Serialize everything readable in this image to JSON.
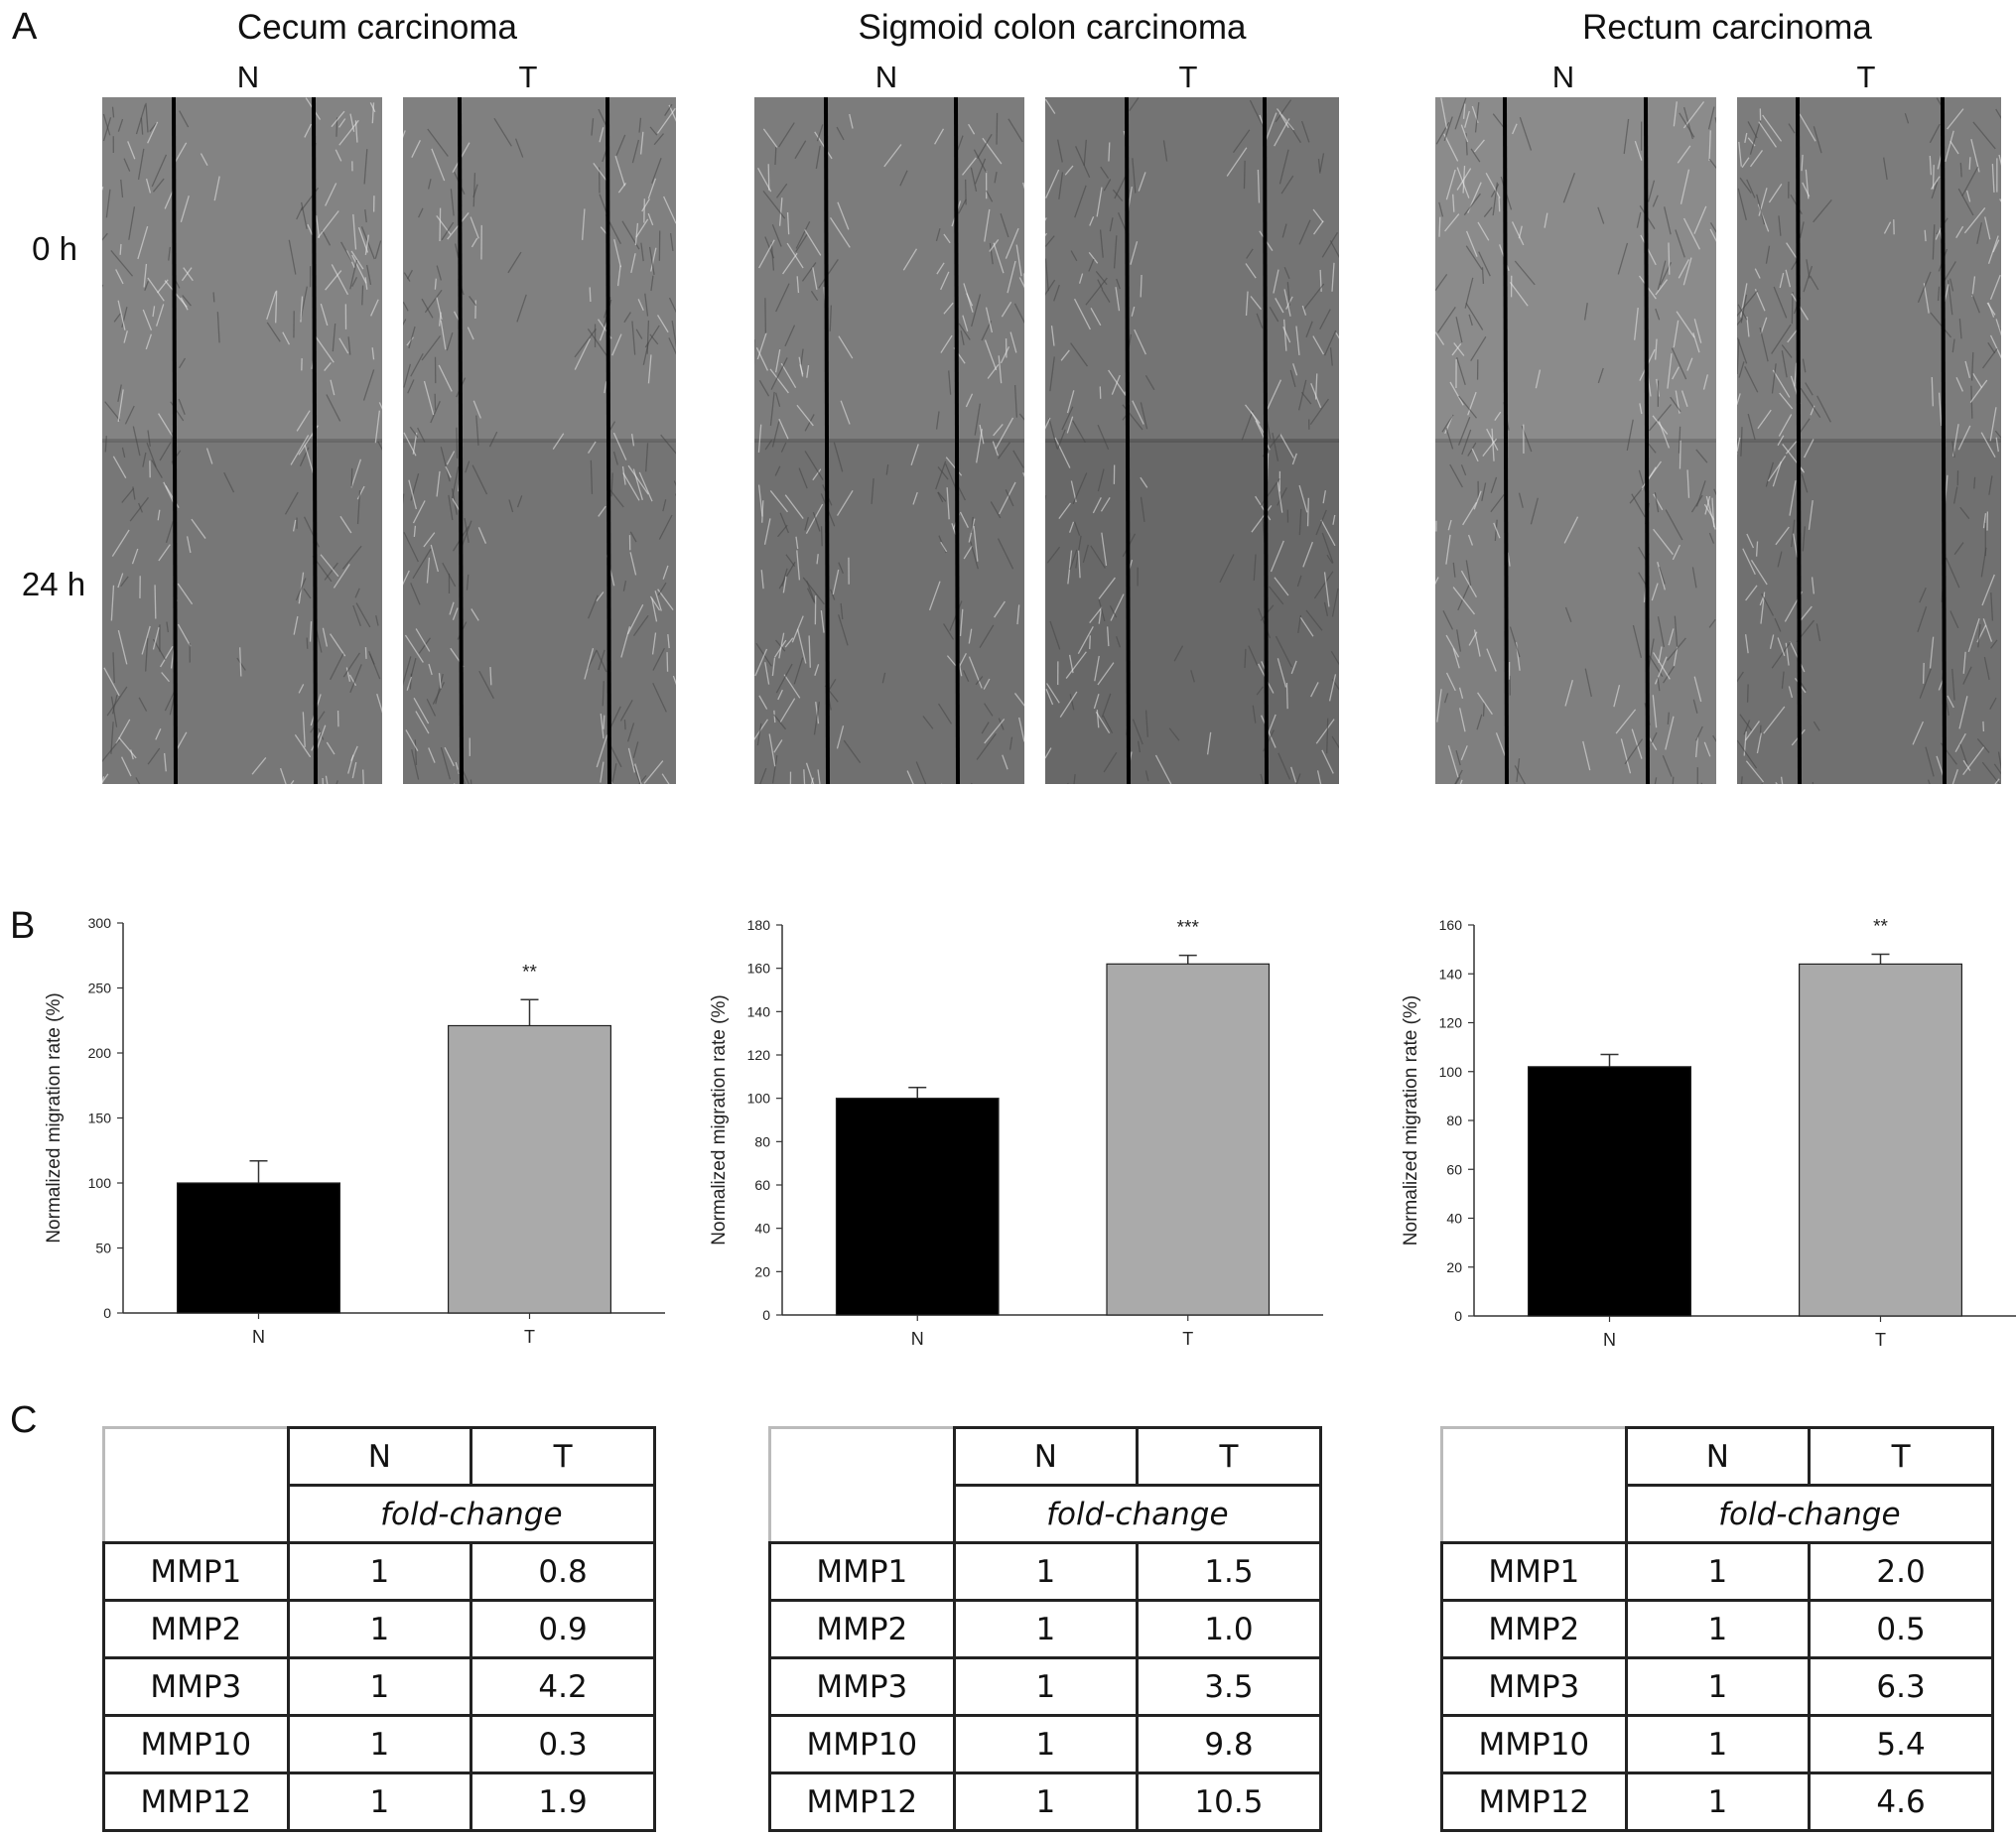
{
  "panels": {
    "a": "A",
    "b": "B",
    "c": "C"
  },
  "panel_a": {
    "titles": [
      "Cecum carcinoma",
      "Sigmoid colon carcinoma",
      "Rectum carcinoma"
    ],
    "n_label": "N",
    "t_label": "T",
    "time_0": "0 h",
    "time_24": "24 h"
  },
  "chart_data": [
    {
      "type": "bar",
      "categories": [
        "N",
        "T"
      ],
      "values": [
        100,
        221
      ],
      "errors": [
        17,
        20
      ],
      "annotation": "**",
      "ylabel": "Normalized migration rate (%)",
      "ylim": [
        0,
        300
      ],
      "yticks": [
        "0",
        "50",
        "100",
        "150",
        "200",
        "250",
        "300"
      ],
      "colors": [
        "#000000",
        "#aaaaaa"
      ]
    },
    {
      "type": "bar",
      "categories": [
        "N",
        "T"
      ],
      "values": [
        100,
        162
      ],
      "errors": [
        5,
        4
      ],
      "annotation": "***",
      "ylabel": "Normalized migration rate (%)",
      "ylim": [
        0,
        180
      ],
      "yticks": [
        "0",
        "20",
        "40",
        "60",
        "80",
        "100",
        "120",
        "140",
        "160",
        "180"
      ],
      "colors": [
        "#000000",
        "#aaaaaa"
      ]
    },
    {
      "type": "bar",
      "categories": [
        "N",
        "T"
      ],
      "values": [
        102,
        144
      ],
      "errors": [
        5,
        4
      ],
      "annotation": "**",
      "ylabel": "Normalized migration rate (%)",
      "ylim": [
        0,
        160
      ],
      "yticks": [
        "0",
        "20",
        "40",
        "60",
        "80",
        "100",
        "120",
        "140",
        "160"
      ],
      "colors": [
        "#000000",
        "#aaaaaa"
      ]
    }
  ],
  "tables": [
    {
      "header": [
        "N",
        "T"
      ],
      "subheader": "fold-change",
      "rows": [
        {
          "gene": "MMP1",
          "n": "1",
          "t": "0.8"
        },
        {
          "gene": "MMP2",
          "n": "1",
          "t": "0.9"
        },
        {
          "gene": "MMP3",
          "n": "1",
          "t": "4.2"
        },
        {
          "gene": "MMP10",
          "n": "1",
          "t": "0.3"
        },
        {
          "gene": "MMP12",
          "n": "1",
          "t": "1.9"
        }
      ]
    },
    {
      "header": [
        "N",
        "T"
      ],
      "subheader": "fold-change",
      "rows": [
        {
          "gene": "MMP1",
          "n": "1",
          "t": "1.5"
        },
        {
          "gene": "MMP2",
          "n": "1",
          "t": "1.0"
        },
        {
          "gene": "MMP3",
          "n": "1",
          "t": "3.5"
        },
        {
          "gene": "MMP10",
          "n": "1",
          "t": "9.8"
        },
        {
          "gene": "MMP12",
          "n": "1",
          "t": "10.5"
        }
      ]
    },
    {
      "header": [
        "N",
        "T"
      ],
      "subheader": "fold-change",
      "rows": [
        {
          "gene": "MMP1",
          "n": "1",
          "t": "2.0"
        },
        {
          "gene": "MMP2",
          "n": "1",
          "t": "0.5"
        },
        {
          "gene": "MMP3",
          "n": "1",
          "t": "6.3"
        },
        {
          "gene": "MMP10",
          "n": "1",
          "t": "5.4"
        },
        {
          "gene": "MMP12",
          "n": "1",
          "t": "4.6"
        }
      ]
    }
  ]
}
